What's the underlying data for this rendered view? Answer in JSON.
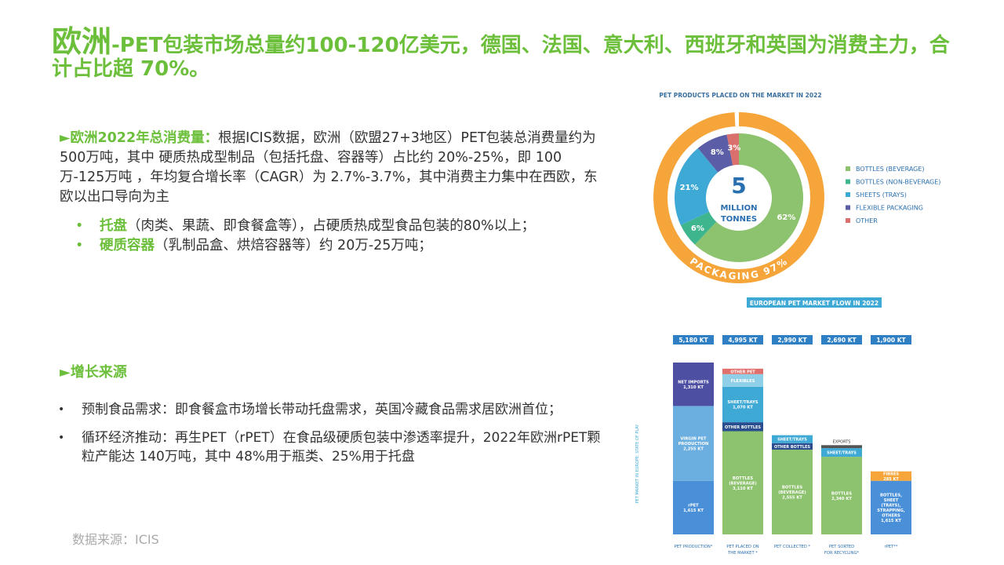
{
  "title": {
    "prefix": "欧洲",
    "text": "-PET包装市场总量约100-120亿美元，德国、法国、意大利、西班牙和英国为消费主力，合计占比超 70%。"
  },
  "consumption": {
    "label": "►欧洲2022年总消费量：",
    "text": "根据ICIS数据，欧洲（欧盟27+3地区）PET包装总消费量约为 500万吨，其中 硬质热成型制品（包括托盘、容器等）占比约 20%-25%，即 100万-125万吨 ，年均复合增长率（CAGR）为 2.7%-3.7%，其中消费主力集中在西欧，东欧以出口导向为主",
    "bullets": [
      {
        "term": "托盘",
        "text": "（肉类、果蔬、即食餐盒等），占硬质热成型食品包装的80%以上；"
      },
      {
        "term": "硬质容器",
        "text": "（乳制品盒、烘焙容器等）约 20万-25万吨；"
      }
    ]
  },
  "growth": {
    "heading": "►增长来源",
    "items": [
      "预制食品需求：即食餐盒市场增长带动托盘需求，英国冷藏食品需求居欧洲首位；",
      "循环经济推动：再生PET（rPET）在食品级硬质包装中渗透率提升，2022年欧洲rPET颗粒产能达 140万吨，其中 48%用于瓶类、25%用于托盘"
    ]
  },
  "source": "数据来源：ICIS",
  "colors": {
    "accent_green": "#6cbf3a",
    "orange": "#f5a53a",
    "teal": "#3fb58e",
    "sky": "#3fa9d6",
    "indigo": "#5b5ea6",
    "red": "#d9706e",
    "bar_green": "#8dc26e",
    "bar_blue": "#4a90d9"
  },
  "chart_data": [
    {
      "type": "pie",
      "title": "PET PRODUCTS PLACED ON THE MARKET IN 2022",
      "center_value": "5",
      "center_label": [
        "MILLION",
        "TONNES"
      ],
      "outer_ring": {
        "label": "PACKAGING 97%",
        "value": 97
      },
      "slices": [
        {
          "name": "BOTTLES (BEVERAGE)",
          "value": 62,
          "label": "62%",
          "color": "#8dc26e"
        },
        {
          "name": "BOTTLES (NON-BEVERAGE)",
          "value": 6,
          "label": "6%",
          "color": "#3fb58e"
        },
        {
          "name": "SHEETS (TRAYS)",
          "value": 21,
          "label": "21%",
          "color": "#3fa9d6"
        },
        {
          "name": "FLEXIBLE PACKAGING",
          "value": 8,
          "label": "8%",
          "color": "#5b5ea6"
        },
        {
          "name": "OTHER",
          "value": 3,
          "label": "3%",
          "color": "#d9706e"
        }
      ],
      "legend": [
        "BOTTLES (BEVERAGE)",
        "BOTTLES (NON-BEVERAGE)",
        "SHEETS (TRAYS)",
        "FLEXIBLE PACKAGING",
        "OTHER"
      ],
      "legend_placement": "right"
    },
    {
      "type": "bar",
      "title": "EUROPEAN PET MARKET FLOW IN 2022",
      "side_label": "PET MARKET IN EUROPE: STATE OF PLAY",
      "ylim": [
        0,
        5180
      ],
      "columns": [
        {
          "header": "5,180 KT",
          "xlabel": "PET PRODUCTION*",
          "total": 5180,
          "segments": [
            {
              "label": "rPET\n1,615 KT",
              "value": 1615,
              "color": "#4a90d9"
            },
            {
              "label": "VIRGIN PET\nPRODUCTION\n2,255 KT",
              "value": 2255,
              "color": "#6baee0"
            },
            {
              "label": "NET IMPORTS\n1,310 KT",
              "value": 1310,
              "color": "#4d4fa3"
            }
          ]
        },
        {
          "header": "4,995 KT",
          "xlabel": "PET PLACED ON\nTHE MARKET *",
          "total": 4995,
          "segments": [
            {
              "label": "BOTTLES\n(BEVERAGE)\n3,110 KT",
              "value": 3110,
              "color": "#8dc26e"
            },
            {
              "label": "OTHER BOTTLES",
              "value": 270,
              "color": "#2a4d8f"
            },
            {
              "label": "SHEET/TRAYS\n1,070 KT",
              "value": 1070,
              "color": "#3fa9d6"
            },
            {
              "label": "FLEXIBLES",
              "value": 380,
              "color": "#8fd0e8"
            },
            {
              "label": "OTHER PET",
              "value": 165,
              "color": "#e0706b"
            }
          ]
        },
        {
          "header": "2,990 KT",
          "xlabel": "PET COLLECTED *",
          "total": 2990,
          "segments": [
            {
              "label": "BOTTLES\n(BEVERAGE)\n2,555 KT",
              "value": 2555,
              "color": "#8dc26e"
            },
            {
              "label": "OTHER BOTTLES",
              "value": 195,
              "color": "#2a4d8f"
            },
            {
              "label": "SHEET/TRAYS",
              "value": 240,
              "color": "#3fa9d6"
            }
          ]
        },
        {
          "header": "2,690 KT",
          "xlabel": "PET SORTED\nFOR RECYCLING*",
          "total": 2690,
          "annotation": "EXPORTS",
          "segments": [
            {
              "label": "BOTTLES\n2,340 KT",
              "value": 2340,
              "color": "#8dc26e"
            },
            {
              "label": "SHEET/TRAYS",
              "value": 260,
              "color": "#3fa9d6"
            },
            {
              "label": "",
              "value": 90,
              "color": "#555555"
            }
          ]
        },
        {
          "header": "1,900 KT",
          "xlabel": "rPET**",
          "total": 1900,
          "segments": [
            {
              "label": "BOTTLES,\nSHEET\n(TRAYS),\nSTRAPPING,\nOTHERS\n1,615 KT",
              "value": 1615,
              "color": "#4a90d9"
            },
            {
              "label": "FIBRES\n285 KT",
              "value": 285,
              "color": "#f5a53a"
            }
          ]
        }
      ]
    }
  ]
}
